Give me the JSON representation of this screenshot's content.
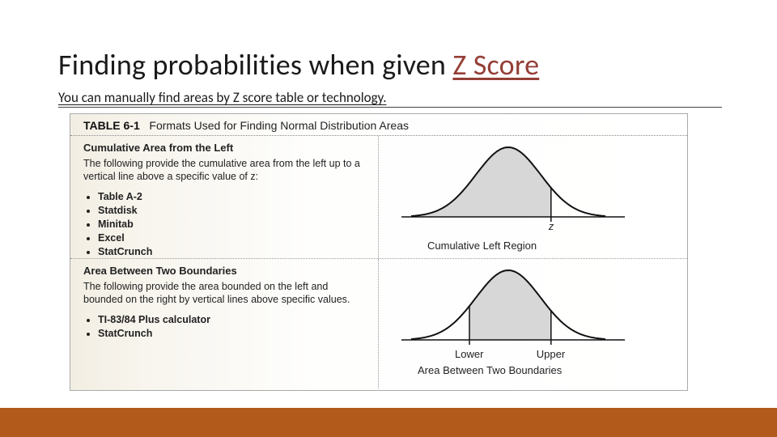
{
  "title_prefix": "Finding probabilities when given ",
  "title_underlined": "Z Score",
  "subtitle": "You can manually find areas by Z score table or technology.",
  "table_title_bold": "TABLE 6-1",
  "table_title_rest": "Formats Used for Finding Normal Distribution Areas",
  "colors": {
    "accent": "#943f36",
    "bottom_bar": "#b25a1b",
    "curve_stroke": "#111111",
    "curve_fill": "#d7d7d7",
    "axis": "#111111",
    "page_bg": "#ffffff"
  },
  "rows": [
    {
      "heading": "Cumulative Area from the Left",
      "description": "The following provide the cumulative area from the left up to a vertical line above a specific value of z:",
      "tools": [
        "Table A-2",
        "Statdisk",
        "Minitab",
        "Excel",
        "StatCrunch"
      ],
      "caption": "Cumulative Left Region",
      "z_label": "z",
      "chart": {
        "type": "normal-curve",
        "shade": "left",
        "cut": 0.72
      }
    },
    {
      "heading": "Area Between Two Boundaries",
      "description": "The following provide the area bounded on the left and bounded on the right by vertical lines above specific values.",
      "tools": [
        "TI-83/84 Plus calculator",
        "StatCrunch"
      ],
      "caption": "Area Between Two Boundaries",
      "lower_label": "Lower",
      "upper_label": "Upper",
      "chart": {
        "type": "normal-curve",
        "shade": "between",
        "lower": 0.3,
        "upper": 0.72
      }
    }
  ]
}
